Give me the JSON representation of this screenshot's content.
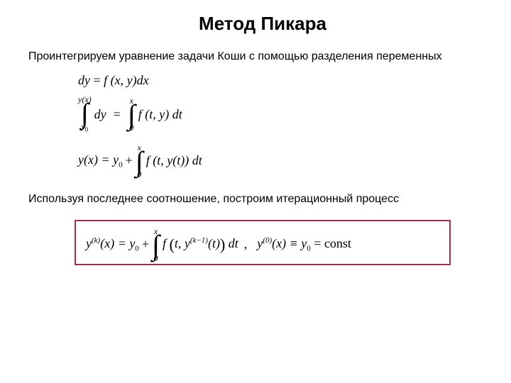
{
  "title": "Метод Пикара",
  "paragraph1": "Проинтегрируем уравнение задачи Коши с помощью разделения переменных",
  "paragraph2": "Используя последнее соотношение, построим итерационный процесс",
  "eq1": {
    "left": "dy",
    "eq": " = ",
    "right": "f (x, y)dx"
  },
  "eq2": {
    "int1_upper": "y(x)",
    "int1_lower": "y",
    "int1_lower_sub": "0",
    "integrand1": "dy",
    "eq": " = ",
    "int2_upper": "x",
    "int2_lower": "0",
    "integrand2": "f (t, y) dt"
  },
  "eq3": {
    "lhs": "y(x) = y",
    "lhs_sub": "0",
    "plus": " + ",
    "int_upper": "x",
    "int_lower": "0",
    "integrand": "f (t, y(t)) dt"
  },
  "eq4": {
    "y": "y",
    "k": "(k)",
    "x_eq": "(x) = y",
    "sub0": "0",
    "plus": " + ",
    "int_upper": "x",
    "int_lower": "0",
    "f_open": "f",
    "args_open": "(t, y",
    "km1": "(k−1)",
    "args_close": "(t)) dt",
    "comma_sep": " ,",
    "y0": "y",
    "sup0": "(0)",
    "tail": "(x) ≡ y",
    "tail_sub": "0",
    "const": " = const"
  },
  "box_border_color": "#a03050"
}
